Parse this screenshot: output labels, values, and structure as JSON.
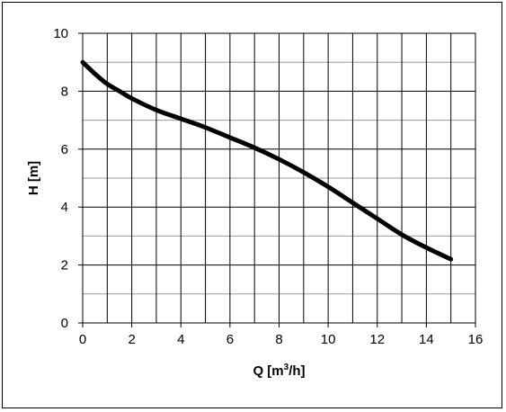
{
  "chart_data": {
    "type": "line",
    "title": "",
    "xlabel": "Q [m³/h]",
    "xlabel_parts": {
      "base": "Q [m",
      "sup": "3",
      "tail": "/h]"
    },
    "ylabel": "H [m]",
    "xlim": [
      0,
      16
    ],
    "ylim": [
      0,
      10
    ],
    "x_ticks": [
      0,
      2,
      4,
      6,
      8,
      10,
      12,
      14,
      16
    ],
    "y_ticks": [
      0,
      2,
      4,
      6,
      8,
      10
    ],
    "x_minor_step": 1,
    "y_minor_step": 1,
    "grid": true,
    "legend": "none",
    "line_color": "#000000",
    "series": [
      {
        "x": [
          0,
          0.5,
          1,
          1.5,
          2,
          3,
          4,
          5,
          6,
          7,
          8,
          9,
          10,
          11,
          12,
          13,
          14,
          15
        ],
        "values": [
          9.0,
          8.6,
          8.25,
          8.0,
          7.75,
          7.35,
          7.05,
          6.75,
          6.4,
          6.05,
          5.65,
          5.2,
          4.7,
          4.15,
          3.6,
          3.05,
          2.6,
          2.2
        ]
      }
    ]
  }
}
